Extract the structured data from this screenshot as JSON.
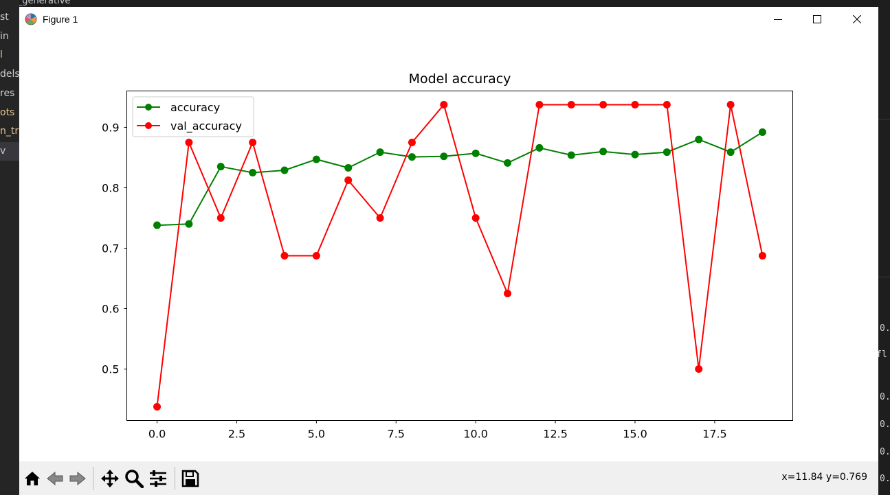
{
  "background": {
    "top_text": "\\pre_generative",
    "left_items": [
      {
        "label": "st",
        "state": "normal"
      },
      {
        "label": "in",
        "state": "normal"
      },
      {
        "label": "l",
        "state": "yellow"
      },
      {
        "label": "dels",
        "state": "normal"
      },
      {
        "label": "res",
        "state": "normal"
      },
      {
        "label": "ots",
        "state": "yellow"
      },
      {
        "label": "n_tra",
        "state": "yellow"
      },
      {
        "label": "v",
        "state": "selected"
      }
    ],
    "right_items": [
      "0.",
      "fl",
      "0.",
      "0.",
      "0.",
      "0."
    ]
  },
  "window": {
    "title": "Figure 1",
    "app_icon": "matplotlib-icon",
    "controls": {
      "minimize": "minimize-icon",
      "maximize": "maximize-icon",
      "close": "close-icon"
    }
  },
  "toolbar": {
    "buttons": [
      "home-icon",
      "back-icon",
      "forward-icon",
      "pan-icon",
      "zoom-icon",
      "configure-subplots-icon",
      "save-icon"
    ],
    "coords_text": "x=11.84 y=0.769"
  },
  "colors": {
    "accuracy": "#008000",
    "val_accuracy": "#ff0000",
    "axes": "#000000"
  },
  "chart_data": {
    "type": "line",
    "title": "Model accuracy",
    "xlabel": "",
    "ylabel": "",
    "x": [
      0,
      1,
      2,
      3,
      4,
      5,
      6,
      7,
      8,
      9,
      10,
      11,
      12,
      13,
      14,
      15,
      16,
      17,
      18,
      19
    ],
    "series": [
      {
        "name": "accuracy",
        "color": "#008000",
        "values": [
          0.738,
          0.74,
          0.835,
          0.825,
          0.829,
          0.847,
          0.833,
          0.859,
          0.851,
          0.852,
          0.857,
          0.841,
          0.866,
          0.854,
          0.86,
          0.855,
          0.859,
          0.88,
          0.859,
          0.892
        ]
      },
      {
        "name": "val_accuracy",
        "color": "#ff0000",
        "values": [
          0.4375,
          0.875,
          0.75,
          0.875,
          0.6875,
          0.6875,
          0.8125,
          0.75,
          0.875,
          0.9375,
          0.75,
          0.625,
          0.9375,
          0.9375,
          0.9375,
          0.9375,
          0.9375,
          0.5,
          0.9375,
          0.6875
        ]
      }
    ],
    "xticks": [
      0,
      2.5,
      5,
      7.5,
      10,
      12.5,
      15,
      17.5
    ],
    "xtick_labels": [
      "0.0",
      "2.5",
      "5.0",
      "7.5",
      "10.0",
      "12.5",
      "15.0",
      "17.5"
    ],
    "yticks": [
      0.5,
      0.6,
      0.7,
      0.8,
      0.9
    ],
    "ytick_labels": [
      "0.5",
      "0.6",
      "0.7",
      "0.8",
      "0.9"
    ],
    "xlim": [
      -0.95,
      19.95
    ],
    "ylim": [
      0.4148,
      0.9602
    ],
    "legend": "upper left",
    "grid": false
  }
}
